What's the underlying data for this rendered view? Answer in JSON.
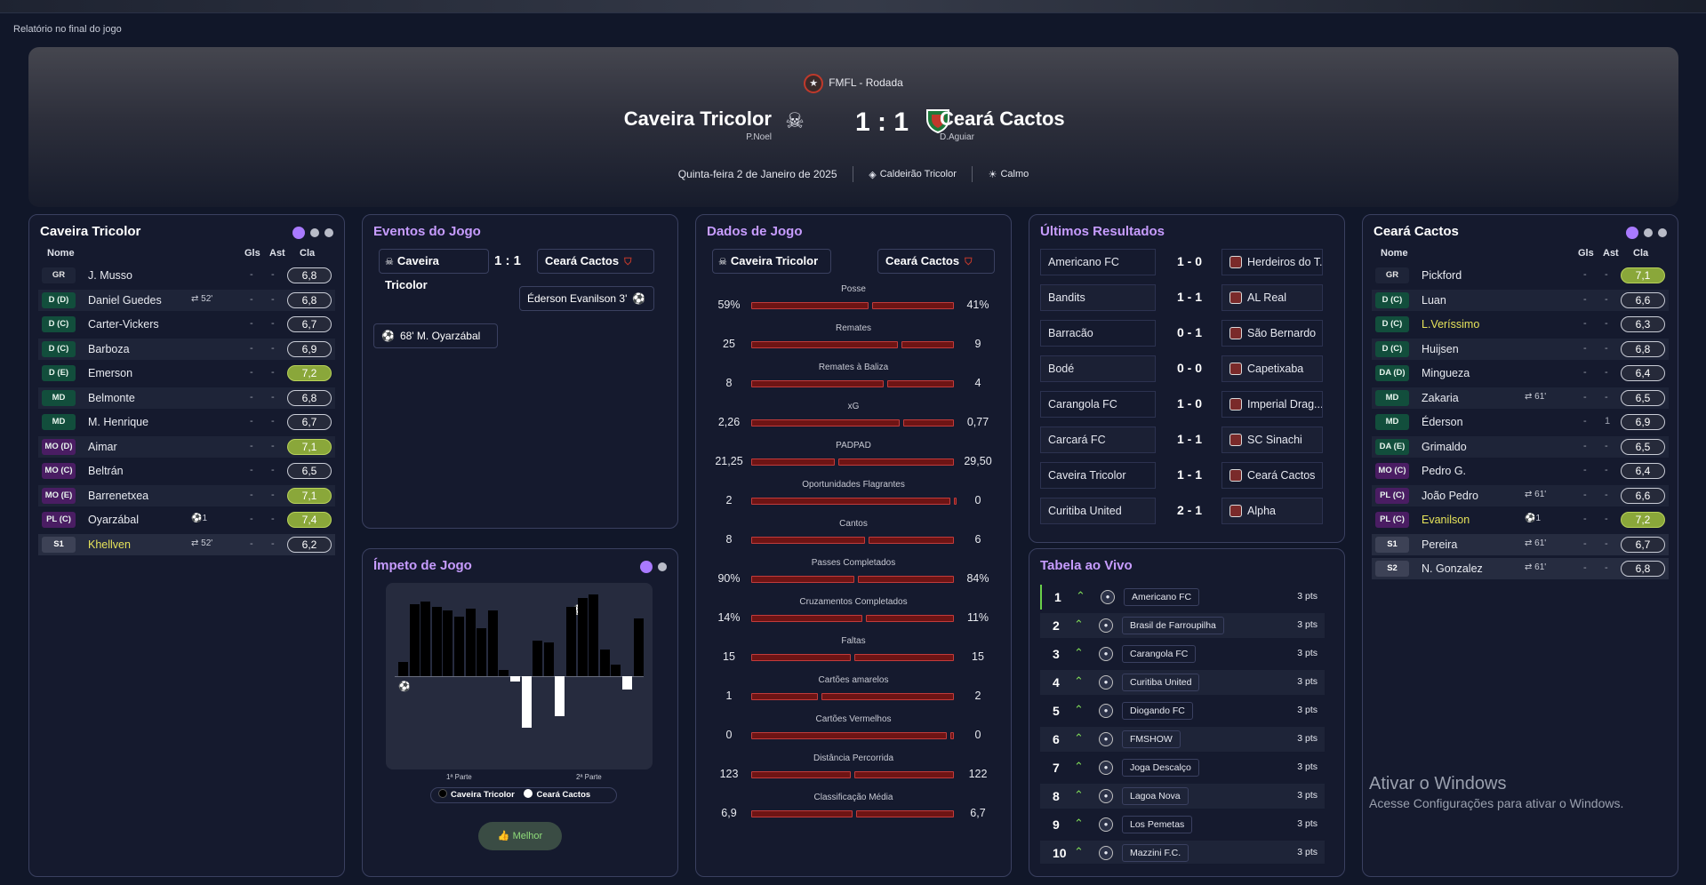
{
  "window_title": "Relatório no final do jogo",
  "header": {
    "competition": "FMFL - Rodada",
    "home": {
      "name": "Caveira Tricolor",
      "manager": "P.Noel"
    },
    "away": {
      "name": "Ceará Cactos",
      "manager": "D.Aguiar"
    },
    "score": "1 : 1",
    "date": "Quinta-feira 2 de Janeiro de 2025",
    "stadium": "Caldeirão Tricolor",
    "weather": "Calmo"
  },
  "home_panel": {
    "title": "Caveira Tricolor",
    "headers": {
      "name": "Nome",
      "gls": "Gls",
      "ast": "Ast",
      "rating": "Cla"
    },
    "players": [
      {
        "pos": "GR",
        "name": "J. Musso",
        "event": "",
        "gls": "-",
        "ast": "-",
        "rating": "6,8"
      },
      {
        "pos": "D (D)",
        "name": "Daniel Guedes",
        "event": "⇄ 52'",
        "gls": "-",
        "ast": "-",
        "rating": "6,8"
      },
      {
        "pos": "D (C)",
        "name": "Carter-Vickers",
        "event": "",
        "gls": "-",
        "ast": "-",
        "rating": "6,7"
      },
      {
        "pos": "D (C)",
        "name": "Barboza",
        "event": "",
        "gls": "-",
        "ast": "-",
        "rating": "6,9"
      },
      {
        "pos": "D (E)",
        "name": "Emerson",
        "event": "",
        "gls": "-",
        "ast": "-",
        "rating": "7,2"
      },
      {
        "pos": "MD",
        "name": "Belmonte",
        "event": "",
        "gls": "-",
        "ast": "-",
        "rating": "6,8"
      },
      {
        "pos": "MD",
        "name": "M. Henrique",
        "event": "",
        "gls": "-",
        "ast": "-",
        "rating": "6,7"
      },
      {
        "pos": "MO (D)",
        "name": "Aimar",
        "event": "",
        "gls": "-",
        "ast": "-",
        "rating": "7,1"
      },
      {
        "pos": "MO (C)",
        "name": "Beltrán",
        "event": "",
        "gls": "-",
        "ast": "-",
        "rating": "6,5"
      },
      {
        "pos": "MO (E)",
        "name": "Barrenetxea",
        "event": "",
        "gls": "-",
        "ast": "-",
        "rating": "7,1"
      },
      {
        "pos": "PL (C)",
        "name": "Oyarzábal",
        "event": "⚽1",
        "gls": "-",
        "ast": "-",
        "rating": "7,4"
      },
      {
        "pos": "S1",
        "name": "Khellven",
        "event": "⇄ 52'",
        "gls": "-",
        "ast": "-",
        "rating": "6,2"
      }
    ]
  },
  "events_panel": {
    "title": "Eventos do Jogo",
    "home": "Caveira Tricolor",
    "score": "1 : 1",
    "away": "Ceará Cactos",
    "events": [
      {
        "side": "away",
        "text": "Éderson  Evanilson  3'"
      },
      {
        "side": "home",
        "text": "68'  M. Oyarzábal"
      }
    ]
  },
  "momentum_panel": {
    "title": "Ímpeto de Jogo",
    "first_half": "1ª Parte",
    "second_half": "2ª Parte",
    "legend_home": "Caveira Tricolor",
    "legend_away": "Ceará Cactos",
    "button": "Melhor",
    "home_bars": [
      12,
      60,
      62,
      58,
      55,
      50,
      56,
      40,
      55,
      5,
      0,
      0,
      30,
      28,
      0,
      58,
      65,
      68,
      22,
      10,
      0,
      48
    ],
    "away_bars": [
      0,
      0,
      0,
      0,
      0,
      0,
      0,
      0,
      0,
      0,
      6,
      58,
      0,
      0,
      45,
      0,
      0,
      0,
      0,
      0,
      15,
      0
    ]
  },
  "stats_panel": {
    "title": "Dados de Jogo",
    "home": "Caveira Tricolor",
    "away": "Ceará Cactos",
    "stats": [
      {
        "label": "Posse",
        "home": "59%",
        "away": "41%",
        "h": 59,
        "a": 41
      },
      {
        "label": "Remates",
        "home": "25",
        "away": "9",
        "h": 25,
        "a": 9
      },
      {
        "label": "Remates à Baliza",
        "home": "8",
        "away": "4",
        "h": 8,
        "a": 4
      },
      {
        "label": "xG",
        "home": "2,26",
        "away": "0,77",
        "h": 2.26,
        "a": 0.77
      },
      {
        "label": "PADPAD",
        "home": "21,25",
        "away": "29,50",
        "h": 21.25,
        "a": 29.5
      },
      {
        "label": "Oportunidades Flagrantes",
        "home": "2",
        "away": "0",
        "h": 2,
        "a": 0
      },
      {
        "label": "Cantos",
        "home": "8",
        "away": "6",
        "h": 8,
        "a": 6
      },
      {
        "label": "Passes Completados",
        "home": "90%",
        "away": "84%",
        "h": 90,
        "a": 84
      },
      {
        "label": "Cruzamentos Completados",
        "home": "14%",
        "away": "11%",
        "h": 14,
        "a": 11
      },
      {
        "label": "Faltas",
        "home": "15",
        "away": "15",
        "h": 15,
        "a": 15
      },
      {
        "label": "Cartões amarelos",
        "home": "1",
        "away": "2",
        "h": 1,
        "a": 2
      },
      {
        "label": "Cartões Vermelhos",
        "home": "0",
        "away": "0",
        "h": 0,
        "a": 0
      },
      {
        "label": "Distância Percorrida",
        "home": "123",
        "away": "122",
        "h": 123,
        "a": 122
      },
      {
        "label": "Classificação Média",
        "home": "6,9",
        "away": "6,7",
        "h": 6.9,
        "a": 6.7
      }
    ]
  },
  "results_panel": {
    "title": "Últimos Resultados",
    "results": [
      {
        "home": "Americano FC",
        "score": "1 - 0",
        "away": "Herdeiros do T..."
      },
      {
        "home": "Bandits",
        "score": "1 - 1",
        "away": "AL Real"
      },
      {
        "home": "Barracão",
        "score": "0 - 1",
        "away": "São Bernardo"
      },
      {
        "home": "Bodé",
        "score": "0 - 0",
        "away": "Capetixaba"
      },
      {
        "home": "Carangola FC",
        "score": "1 - 0",
        "away": "Imperial Drag..."
      },
      {
        "home": "Carcará FC",
        "score": "1 - 1",
        "away": "SC Sinachi"
      },
      {
        "home": "Caveira Tricolor",
        "score": "1 - 1",
        "away": "Ceará Cactos"
      },
      {
        "home": "Curitiba United",
        "score": "2 - 1",
        "away": "Alpha"
      }
    ]
  },
  "table_panel": {
    "title": "Tabela ao Vivo",
    "rows": [
      {
        "pos": "1",
        "team": "Americano FC",
        "pts": "3 pts"
      },
      {
        "pos": "2",
        "team": "Brasil de Farroupilha",
        "pts": "3 pts"
      },
      {
        "pos": "3",
        "team": "Carangola FC",
        "pts": "3 pts"
      },
      {
        "pos": "4",
        "team": "Curitiba United",
        "pts": "3 pts"
      },
      {
        "pos": "5",
        "team": "Diogando FC",
        "pts": "3 pts"
      },
      {
        "pos": "6",
        "team": "FMSHOW",
        "pts": "3 pts"
      },
      {
        "pos": "7",
        "team": "Joga Descalço",
        "pts": "3 pts"
      },
      {
        "pos": "8",
        "team": "Lagoa Nova",
        "pts": "3 pts"
      },
      {
        "pos": "9",
        "team": "Los Pemetas",
        "pts": "3 pts"
      },
      {
        "pos": "10",
        "team": "Mazzini F.C.",
        "pts": "3 pts"
      }
    ]
  },
  "away_panel": {
    "title": "Ceará Cactos",
    "headers": {
      "name": "Nome",
      "gls": "Gls",
      "ast": "Ast",
      "rating": "Cla"
    },
    "players": [
      {
        "pos": "GR",
        "name": "Pickford",
        "event": "",
        "gls": "-",
        "ast": "-",
        "rating": "7,1"
      },
      {
        "pos": "D (C)",
        "name": "Luan",
        "event": "",
        "gls": "-",
        "ast": "-",
        "rating": "6,6"
      },
      {
        "pos": "D (C)",
        "name": "L.Veríssimo",
        "event": "",
        "gls": "-",
        "ast": "-",
        "rating": "6,3"
      },
      {
        "pos": "D (C)",
        "name": "Huijsen",
        "event": "",
        "gls": "-",
        "ast": "-",
        "rating": "6,8"
      },
      {
        "pos": "DA (D)",
        "name": "Mingueza",
        "event": "",
        "gls": "-",
        "ast": "-",
        "rating": "6,4"
      },
      {
        "pos": "MD",
        "name": "Zakaria",
        "event": "⇄ 61'",
        "gls": "-",
        "ast": "-",
        "rating": "6,5"
      },
      {
        "pos": "MD",
        "name": "Éderson",
        "event": "",
        "gls": "-",
        "ast": "1",
        "rating": "6,9"
      },
      {
        "pos": "DA (E)",
        "name": "Grimaldo",
        "event": "",
        "gls": "-",
        "ast": "-",
        "rating": "6,5"
      },
      {
        "pos": "MO (C)",
        "name": "Pedro G.",
        "event": "",
        "gls": "-",
        "ast": "-",
        "rating": "6,4"
      },
      {
        "pos": "PL (C)",
        "name": "João Pedro",
        "event": "⇄ 61'",
        "gls": "-",
        "ast": "-",
        "rating": "6,6"
      },
      {
        "pos": "PL (C)",
        "name": "Evanilson",
        "event": "⚽1",
        "gls": "-",
        "ast": "-",
        "rating": "7,2"
      },
      {
        "pos": "S1",
        "name": "Pereira",
        "event": "⇄ 61'",
        "gls": "-",
        "ast": "-",
        "rating": "6,7"
      },
      {
        "pos": "S2",
        "name": "N. Gonzalez",
        "event": "⇄ 61'",
        "gls": "-",
        "ast": "-",
        "rating": "6,8"
      }
    ]
  },
  "watermark": {
    "line1": "Ativar o Windows",
    "line2": "Acesse Configurações para ativar o Windows."
  }
}
